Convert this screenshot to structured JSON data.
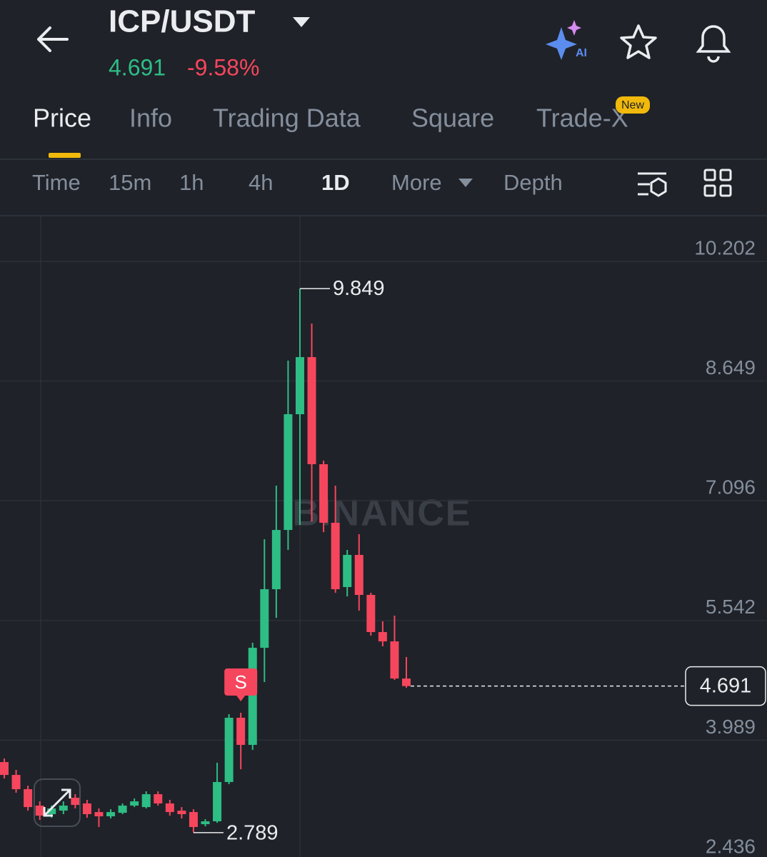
{
  "header": {
    "pair": "ICP/USDT",
    "price": "4.691",
    "change": "-9.58%"
  },
  "tabs": [
    "Price",
    "Info",
    "Trading Data",
    "Square",
    "Trade-X"
  ],
  "tab_badge": "New",
  "ai_badge": "AI",
  "intervals": [
    "Time",
    "15m",
    "1h",
    "4h",
    "1D",
    "More",
    "Depth"
  ],
  "watermark": "BINANCE",
  "chart_data": {
    "type": "candlestick",
    "open": [
      3.705,
      3.538,
      3.353,
      3.14,
      3.029,
      3.075,
      3.242,
      3.168,
      3.056,
      3.001,
      3.047,
      3.14,
      3.121,
      3.288,
      3.168,
      3.075,
      3.056,
      2.899,
      2.936,
      3.446,
      4.28,
      3.928,
      5.188,
      5.948,
      6.717,
      8.219,
      8.96,
      7.57,
      6.81,
      5.976,
      6.393,
      5.874,
      5.392,
      5.271,
      4.789
    ],
    "high": [
      3.752,
      3.603,
      3.399,
      3.195,
      3.14,
      3.195,
      3.288,
      3.214,
      3.103,
      3.093,
      3.168,
      3.232,
      3.325,
      3.325,
      3.214,
      3.121,
      3.093,
      2.964,
      3.696,
      4.326,
      4.345,
      5.253,
      6.597,
      7.292,
      8.914,
      9.849,
      9.396,
      7.616,
      7.292,
      6.458,
      6.662,
      5.902,
      5.531,
      5.605,
      5.068
    ],
    "low": [
      3.492,
      3.307,
      3.075,
      2.954,
      2.982,
      3.029,
      3.103,
      2.982,
      2.862,
      2.973,
      3.029,
      3.121,
      3.103,
      3.14,
      3.01,
      2.973,
      2.789,
      2.871,
      2.917,
      3.418,
      3.612,
      3.863,
      4.743,
      5.577,
      6.458,
      6.782,
      6.828,
      6.689,
      5.902,
      5.855,
      5.67,
      5.346,
      5.207,
      4.771,
      4.669
    ],
    "close": [
      3.538,
      3.353,
      3.121,
      3.01,
      3.103,
      3.14,
      3.149,
      3.029,
      3.001,
      3.056,
      3.14,
      3.195,
      3.288,
      3.168,
      3.056,
      3.029,
      2.862,
      2.936,
      3.446,
      4.28,
      3.928,
      5.188,
      5.948,
      6.717,
      8.219,
      8.96,
      7.57,
      6.81,
      5.948,
      6.393,
      5.874,
      5.392,
      5.271,
      4.789,
      4.691
    ],
    "up_color": "#2ebd85",
    "down_color": "#f6465d",
    "ylim": [
      2.473,
      10.786
    ],
    "yticks": [
      2.436,
      3.989,
      5.542,
      7.096,
      8.649,
      10.202
    ],
    "grid": true,
    "signals": [
      {
        "candle": 20,
        "label": "S"
      }
    ]
  }
}
